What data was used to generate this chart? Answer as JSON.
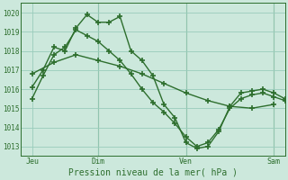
{
  "bg_color": "#cce8dc",
  "grid_color": "#99ccbb",
  "line_color": "#2d6e2d",
  "marker": "+",
  "markersize": 4,
  "linewidth": 1.0,
  "markeredgewidth": 1.2,
  "title": "Pression niveau de la mer( hPa )",
  "title_fontsize": 7,
  "ylabel_vals": [
    1013,
    1014,
    1015,
    1016,
    1017,
    1018,
    1019,
    1020
  ],
  "ylim": [
    1012.5,
    1020.5
  ],
  "xlim": [
    -0.5,
    11.5
  ],
  "x_tick_positions": [
    0,
    3,
    7,
    11
  ],
  "x_tick_labels": [
    "Jeu",
    "Dim",
    "Ven",
    "Sam"
  ],
  "tick_fontsize": 6,
  "ytick_fontsize": 5.5,
  "vline_positions": [
    3,
    7,
    11
  ],
  "series1_x": [
    0,
    0.5,
    1,
    1.5,
    2,
    2.5,
    3,
    3.5,
    4,
    4.5,
    5,
    5.5,
    6,
    6.5,
    7,
    7.5,
    8,
    8.5,
    9,
    9.5,
    10,
    10.5,
    11,
    11.5
  ],
  "series1_y": [
    1016.1,
    1017.0,
    1018.2,
    1018.0,
    1019.2,
    1019.9,
    1019.5,
    1019.5,
    1019.8,
    1018.0,
    1017.5,
    1016.7,
    1015.2,
    1014.5,
    1013.2,
    1012.9,
    1013.0,
    1013.8,
    1015.1,
    1015.8,
    1015.9,
    1016.0,
    1015.8,
    1015.5
  ],
  "series2_x": [
    0,
    0.5,
    1,
    1.5,
    2,
    2.5,
    3,
    3.5,
    4,
    4.5,
    5,
    5.5,
    6,
    6.5,
    7,
    7.5,
    8,
    8.5,
    9,
    9.5,
    10,
    10.5,
    11,
    11.5
  ],
  "series2_y": [
    1015.5,
    1016.7,
    1017.8,
    1018.2,
    1019.1,
    1018.8,
    1018.5,
    1018.0,
    1017.5,
    1016.8,
    1016.0,
    1015.3,
    1014.8,
    1014.2,
    1013.5,
    1013.0,
    1013.2,
    1013.9,
    1015.0,
    1015.5,
    1015.7,
    1015.8,
    1015.6,
    1015.4
  ],
  "series3_x": [
    0,
    1,
    2,
    3,
    4,
    5,
    6,
    7,
    8,
    9,
    10,
    11
  ],
  "series3_y": [
    1016.8,
    1017.4,
    1017.8,
    1017.5,
    1017.2,
    1016.8,
    1016.3,
    1015.8,
    1015.4,
    1015.1,
    1015.0,
    1015.2
  ]
}
